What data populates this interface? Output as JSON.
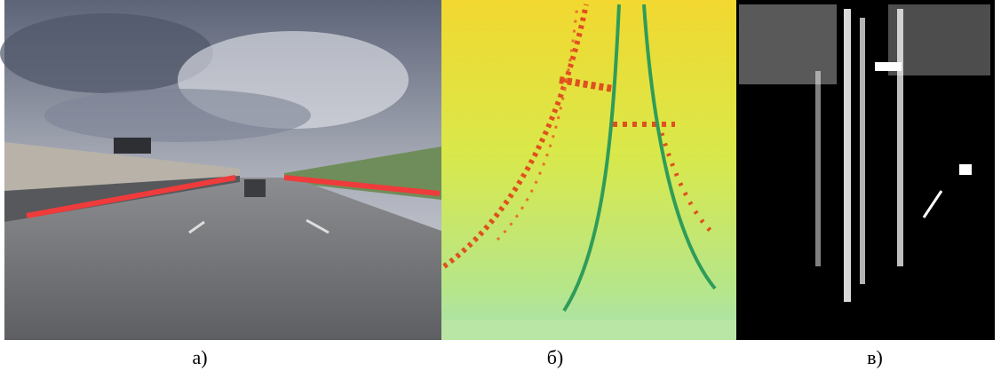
{
  "panels": [
    {
      "label": "а)"
    },
    {
      "label": "б)"
    },
    {
      "label": "в)"
    }
  ]
}
